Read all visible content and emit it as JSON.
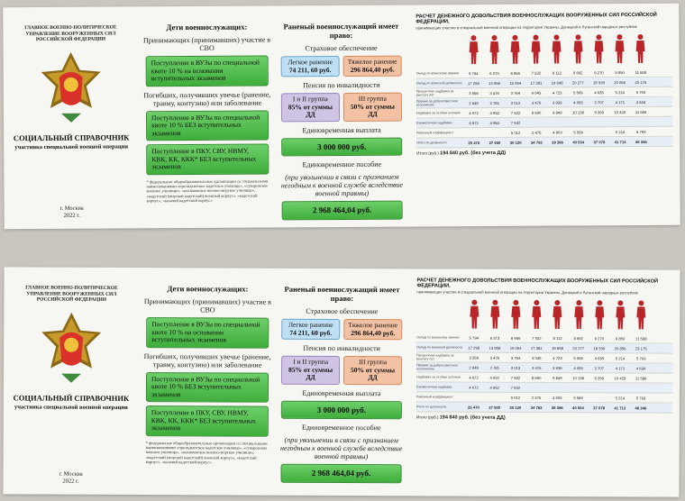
{
  "cover": {
    "org": "Главное военно-политическое управление Вооруженных Сил Российской Федерации",
    "title": "СОЦИАЛЬНЫЙ СПРАВОЧНИК",
    "subtitle": "участника специальной военной операции",
    "city": "г. Москва",
    "year": "2022 г."
  },
  "children": {
    "heading": "Дети военнослужащих:",
    "participants": "Принимающих (принимавших) участие в СВО",
    "quota_box": "Поступление в ВУЗы по специальной квоте 10 % на основании вступительных экзаменов",
    "fallen": "Погибших, получивших увечье (ранение, травму, контузию) или заболевание",
    "no_exam_box": "Поступление в ВУЗы по специальной квоте 10 % БЕЗ вступительных экзаменов",
    "academies_box": "Поступление в ПКУ, СВУ, НВМУ, КВК, КК, ККК* БЕЗ вступительных экзаменов",
    "footnote": "* федеральные общеобразовательные организации со специальными наименованиями «президентское кадетское училище», «суворовское военное училище», «нахимовское военно-морское училище», «кадетский (морской кадетский) военный корпус», «кадетский корпус», «казачий кадетский корпус»"
  },
  "rights": {
    "heading": "Раненый военнослужащий имеет право:",
    "insurance": "Страховое обеспечение",
    "light_label": "Легкое ранение",
    "light_value": "74 211, 60 руб.",
    "heavy_label": "Тяжелое ранение",
    "heavy_value": "296 864,40 руб.",
    "pension": "Пенсия по инвалидности",
    "g12_label": "I и II группа",
    "g12_value": "85% от суммы ДД",
    "g3_label": "III группа",
    "g3_value": "50% от суммы ДД",
    "onetime": "Единовременная выплата",
    "onetime_value": "3 000 000 руб.",
    "allowance": "Единовременное пособие",
    "allowance_note": "(при увольнении в связи с признанием негодным к военной службе вследствие военной травмы)",
    "allowance_value": "2 968 464,04 руб."
  },
  "pay": {
    "title": "РАСЧЕТ ДЕНЕЖНОГО ДОВОЛЬСТВИЯ ВОЕННОСЛУЖАЩИХ ВООРУЖЕННЫХ СИЛ РОССИЙСКОЙ ФЕДЕРАЦИИ,",
    "subtitle": "принимающих участие в специальной военной операции на территории Украины, Донецкой и Луганской народных республик",
    "rows": [
      {
        "label": "Оклад по воинскому званию",
        "cells": [
          "5 794",
          "6 373",
          "6 956",
          "7 532",
          "8 112",
          "8 692",
          "9 270",
          "9 850",
          "11 588"
        ]
      },
      {
        "label": "Оклад по воинской должности",
        "cells": [
          "17 298",
          "13 958",
          "15 064",
          "17 381",
          "19 698",
          "20 277",
          "18 539",
          "20 856",
          "23 175"
        ]
      },
      {
        "label": "Процентная надбавка за выслугу лет",
        "cells": [
          "3 556",
          "3 476",
          "3 764",
          "4 045",
          "4 723",
          "5 569",
          "4 635",
          "5 214",
          "5 793"
        ]
      },
      {
        "label": "Премия за добросовестное исполнение",
        "cells": [
          "2 649",
          "2 781",
          "3 013",
          "3 476",
          "3 939",
          "4 055",
          "3 707",
          "4 171",
          "4 634"
        ]
      },
      {
        "label": "Надбавка за особые условия",
        "cells": [
          "4 972",
          "4 952",
          "7 532",
          "8 690",
          "9 849",
          "10 138",
          "9 269",
          "10 428",
          "11 586"
        ]
      },
      {
        "label": "Ежемесячная надбавка",
        "cells": [
          "4 972",
          "4 952",
          "7 532",
          "",
          "",
          "",
          "",
          "",
          ""
        ]
      },
      {
        "label": "Районный коэффициент",
        "cells": [
          "",
          "",
          "5 012",
          "2 476",
          "4 903",
          "5 569",
          "",
          "5 214",
          "5 793"
        ]
      },
      {
        "label": "Итого по должности",
        "cells": [
          "25 470",
          "27 930",
          "30 120",
          "34 763",
          "39 396",
          "40 554",
          "37 078",
          "41 713",
          "46 346"
        ]
      }
    ],
    "total_label": "Итого (руб.)",
    "total_value": "194 840 руб. (без учета ДД)"
  }
}
